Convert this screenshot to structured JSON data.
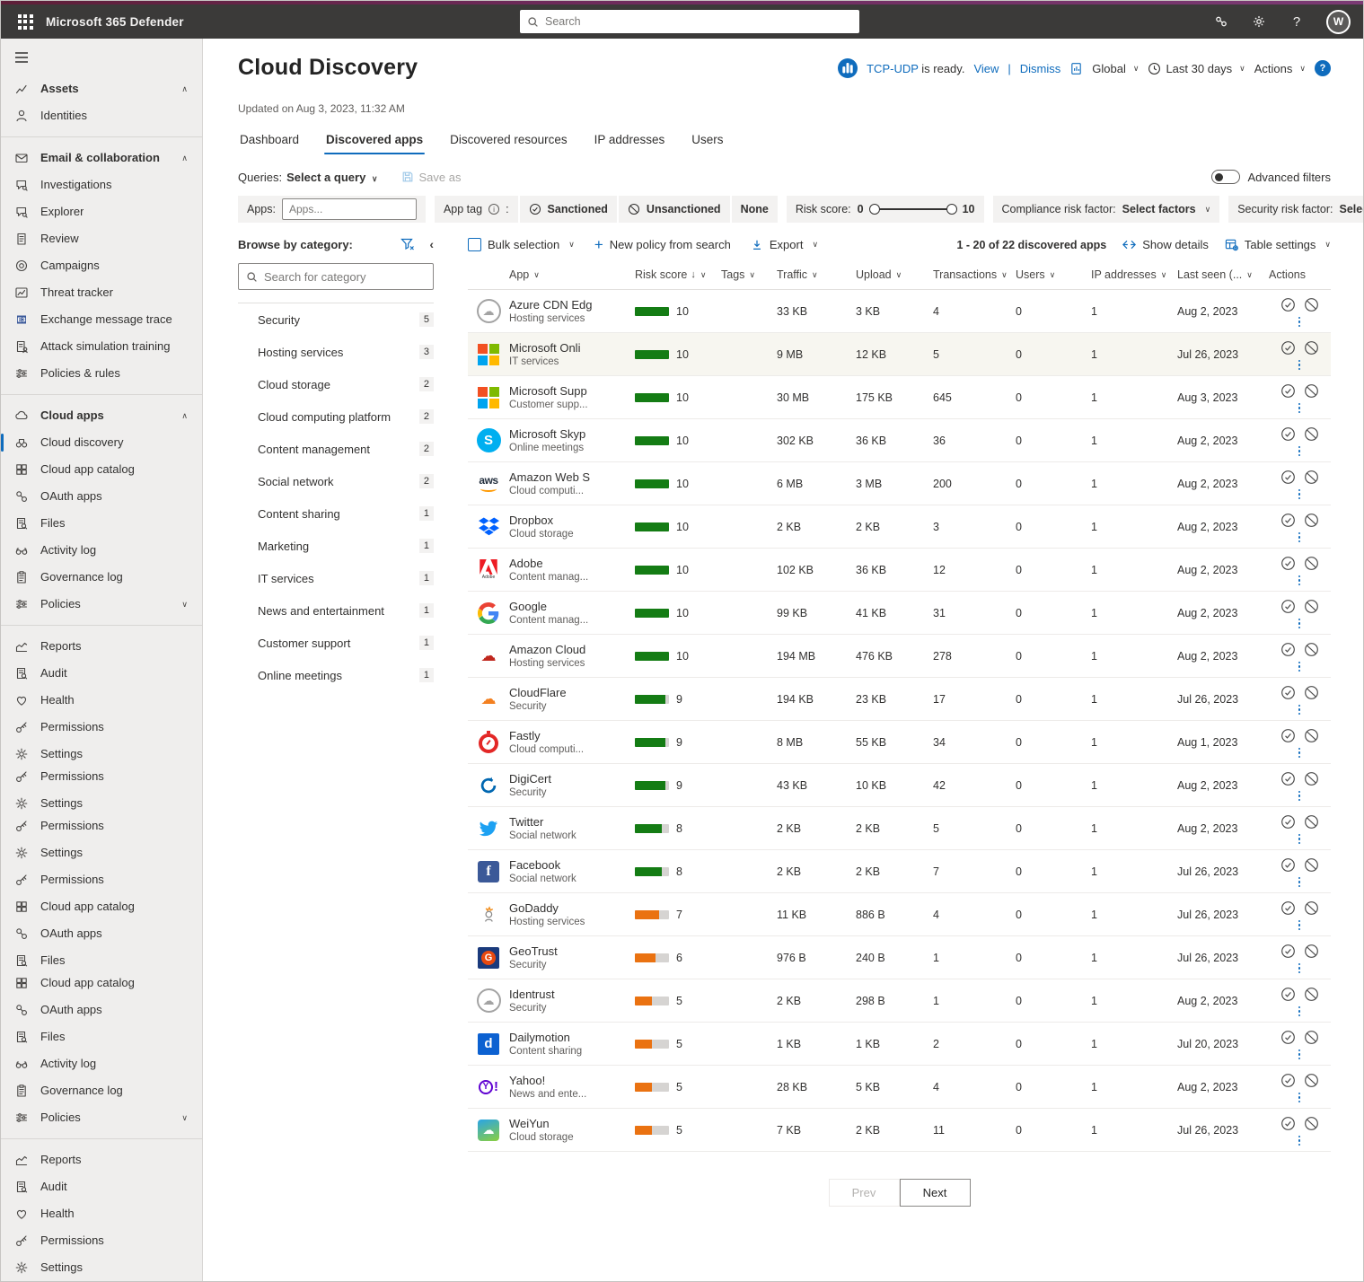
{
  "topbar": {
    "title": "Microsoft 365 Defender",
    "search_placeholder": "Search",
    "avatar_initial": "W"
  },
  "sidebar": {
    "items": [
      {
        "t": "head",
        "label": "Assets",
        "icon": "assets",
        "chev": "up"
      },
      {
        "t": "item",
        "label": "Identities",
        "icon": "person"
      },
      {
        "t": "div"
      },
      {
        "t": "head",
        "label": "Email & collaboration",
        "icon": "mail",
        "chev": "up"
      },
      {
        "t": "item",
        "label": "Investigations",
        "icon": "chat"
      },
      {
        "t": "item",
        "label": "Explorer",
        "icon": "chat"
      },
      {
        "t": "item",
        "label": "Review",
        "icon": "doc"
      },
      {
        "t": "item",
        "label": "Campaigns",
        "icon": "target"
      },
      {
        "t": "item",
        "label": "Threat tracker",
        "icon": "chartline"
      },
      {
        "t": "item",
        "label": "Exchange message trace",
        "icon": "exchange"
      },
      {
        "t": "item",
        "label": "Attack simulation training",
        "icon": "docperson"
      },
      {
        "t": "item",
        "label": "Policies & rules",
        "icon": "sliders"
      },
      {
        "t": "div"
      },
      {
        "t": "head",
        "label": "Cloud apps",
        "icon": "cloud",
        "chev": "up"
      },
      {
        "t": "item",
        "label": "Cloud discovery",
        "icon": "binoculars",
        "sel": true
      },
      {
        "t": "item",
        "label": "Cloud app catalog",
        "icon": "grid"
      },
      {
        "t": "item",
        "label": "OAuth apps",
        "icon": "oauth"
      },
      {
        "t": "item",
        "label": "Files",
        "icon": "filesearch"
      },
      {
        "t": "item",
        "label": "Activity log",
        "icon": "glasses"
      },
      {
        "t": "item",
        "label": "Governance log",
        "icon": "clipboard"
      },
      {
        "t": "item",
        "label": "Policies",
        "icon": "sliders",
        "chev": "down"
      },
      {
        "t": "div"
      },
      {
        "t": "item",
        "label": "Reports",
        "icon": "report"
      },
      {
        "t": "item",
        "label": "Audit",
        "icon": "filesearch"
      },
      {
        "t": "item",
        "label": "Health",
        "icon": "heart"
      },
      {
        "t": "item",
        "label": "Permissions",
        "icon": "key"
      },
      {
        "t": "item",
        "label": "Settings",
        "icon": "gear"
      },
      {
        "t": "item",
        "label": "Permissions",
        "icon": "key",
        "tight": true
      },
      {
        "t": "item",
        "label": "Settings",
        "icon": "gear"
      },
      {
        "t": "item",
        "label": "Permissions",
        "icon": "key",
        "tight": true
      },
      {
        "t": "item",
        "label": "Settings",
        "icon": "gear"
      },
      {
        "t": "item",
        "label": "Permissions",
        "icon": "key"
      },
      {
        "t": "item",
        "label": "Cloud app catalog",
        "icon": "grid"
      },
      {
        "t": "item",
        "label": "OAuth apps",
        "icon": "oauth"
      },
      {
        "t": "item",
        "label": "Files",
        "icon": "filesearch"
      },
      {
        "t": "item",
        "label": "Cloud app catalog",
        "icon": "grid",
        "tight": true
      },
      {
        "t": "item",
        "label": "OAuth apps",
        "icon": "oauth"
      },
      {
        "t": "item",
        "label": "Files",
        "icon": "filesearch"
      },
      {
        "t": "item",
        "label": "Activity log",
        "icon": "glasses"
      },
      {
        "t": "item",
        "label": "Governance log",
        "icon": "clipboard"
      },
      {
        "t": "item",
        "label": "Policies",
        "icon": "sliders",
        "chev": "down"
      },
      {
        "t": "div"
      },
      {
        "t": "item",
        "label": "Reports",
        "icon": "report"
      },
      {
        "t": "item",
        "label": "Audit",
        "icon": "filesearch"
      },
      {
        "t": "item",
        "label": "Health",
        "icon": "heart"
      },
      {
        "t": "item",
        "label": "Permissions",
        "icon": "key"
      },
      {
        "t": "item",
        "label": "Settings",
        "icon": "gear"
      }
    ]
  },
  "page": {
    "title": "Cloud Discovery",
    "updated": "Updated on Aug 3, 2023, 11:32 AM",
    "banner": {
      "app_name": "TCP-UDP",
      "message": " is ready.",
      "view": "View",
      "separator": "|",
      "dismiss": "Dismiss",
      "scope": "Global",
      "period": "Last 30 days",
      "actions": "Actions"
    },
    "tabs": [
      {
        "label": "Dashboard",
        "active": false
      },
      {
        "label": "Discovered apps",
        "active": true
      },
      {
        "label": "Discovered resources",
        "active": false
      },
      {
        "label": "IP addresses",
        "active": false
      },
      {
        "label": "Users",
        "active": false
      }
    ]
  },
  "filters": {
    "queries_label": "Queries:",
    "queries_value": "Select a query",
    "save_as": "Save as",
    "advanced_filters": "Advanced filters",
    "apps_label": "Apps:",
    "apps_placeholder": "Apps...",
    "app_tag_label": "App tag",
    "sanctioned": "Sanctioned",
    "unsanctioned": "Unsanctioned",
    "none": "None",
    "risk_label": "Risk score:",
    "risk_min": "0",
    "risk_max": "10",
    "compliance_label": "Compliance risk factor:",
    "compliance_value": "Select factors",
    "security_label": "Security risk factor:",
    "security_value": "Select factors"
  },
  "categories": {
    "heading": "Browse by category:",
    "search_placeholder": "Search for category",
    "items": [
      {
        "label": "Security",
        "count": "5"
      },
      {
        "label": "Hosting services",
        "count": "3"
      },
      {
        "label": "Cloud storage",
        "count": "2"
      },
      {
        "label": "Cloud computing platform",
        "count": "2"
      },
      {
        "label": "Content management",
        "count": "2"
      },
      {
        "label": "Social network",
        "count": "2"
      },
      {
        "label": "Content sharing",
        "count": "1"
      },
      {
        "label": "Marketing",
        "count": "1"
      },
      {
        "label": "IT services",
        "count": "1"
      },
      {
        "label": "News and entertainment",
        "count": "1"
      },
      {
        "label": "Customer support",
        "count": "1"
      },
      {
        "label": "Online meetings",
        "count": "1"
      }
    ]
  },
  "toolbar": {
    "bulk_selection": "Bulk selection",
    "new_policy": "New policy from search",
    "export": "Export",
    "count_text": "1 - 20 of 22 discovered apps",
    "show_details": "Show details",
    "table_settings": "Table settings"
  },
  "table": {
    "columns": [
      {
        "label": "App",
        "chev": true
      },
      {
        "label": "Risk score",
        "sort": "↓",
        "chev": true
      },
      {
        "label": "Tags",
        "chev": true
      },
      {
        "label": "Traffic",
        "chev": true
      },
      {
        "label": "Upload",
        "chev": true
      },
      {
        "label": "Transactions",
        "chev": true
      },
      {
        "label": "Users",
        "chev": true
      },
      {
        "label": "IP addresses",
        "chev": true
      },
      {
        "label": "Last seen (...",
        "chev": true
      },
      {
        "label": "Actions",
        "chev": false
      }
    ],
    "rows": [
      {
        "icon": "azurecdn",
        "name": "Azure CDN Edg",
        "category": "Hosting services",
        "score": 10,
        "traffic": "33 KB",
        "upload": "3 KB",
        "transactions": "4",
        "users": "0",
        "ips": "1",
        "last_seen": "Aug 2, 2023"
      },
      {
        "icon": "microsoft",
        "name": "Microsoft Onli",
        "category": "IT services",
        "score": 10,
        "traffic": "9 MB",
        "upload": "12 KB",
        "transactions": "5",
        "users": "0",
        "ips": "1",
        "last_seen": "Jul 26, 2023",
        "highlight": true
      },
      {
        "icon": "microsoft",
        "name": "Microsoft Supp",
        "category": "Customer supp...",
        "score": 10,
        "traffic": "30 MB",
        "upload": "175 KB",
        "transactions": "645",
        "users": "0",
        "ips": "1",
        "last_seen": "Aug 3, 2023"
      },
      {
        "icon": "skype",
        "name": "Microsoft Skyp",
        "category": "Online meetings",
        "score": 10,
        "traffic": "302 KB",
        "upload": "36 KB",
        "transactions": "36",
        "users": "0",
        "ips": "1",
        "last_seen": "Aug 2, 2023"
      },
      {
        "icon": "aws",
        "name": "Amazon Web S",
        "category": "Cloud computi...",
        "score": 10,
        "traffic": "6 MB",
        "upload": "3 MB",
        "transactions": "200",
        "users": "0",
        "ips": "1",
        "last_seen": "Aug 2, 2023"
      },
      {
        "icon": "dropbox",
        "name": "Dropbox",
        "category": "Cloud storage",
        "score": 10,
        "traffic": "2 KB",
        "upload": "2 KB",
        "transactions": "3",
        "users": "0",
        "ips": "1",
        "last_seen": "Aug 2, 2023"
      },
      {
        "icon": "adobe",
        "name": "Adobe",
        "category": "Content manag...",
        "score": 10,
        "traffic": "102 KB",
        "upload": "36 KB",
        "transactions": "12",
        "users": "0",
        "ips": "1",
        "last_seen": "Aug 2, 2023"
      },
      {
        "icon": "google",
        "name": "Google",
        "category": "Content manag...",
        "score": 10,
        "traffic": "99 KB",
        "upload": "41 KB",
        "transactions": "31",
        "users": "0",
        "ips": "1",
        "last_seen": "Aug 2, 2023"
      },
      {
        "icon": "amazoncloud",
        "name": "Amazon Cloud",
        "category": "Hosting services",
        "score": 10,
        "traffic": "194 MB",
        "upload": "476 KB",
        "transactions": "278",
        "users": "0",
        "ips": "1",
        "last_seen": "Aug 2, 2023"
      },
      {
        "icon": "cloudflare",
        "name": "CloudFlare",
        "category": "Security",
        "score": 9,
        "traffic": "194 KB",
        "upload": "23 KB",
        "transactions": "17",
        "users": "0",
        "ips": "1",
        "last_seen": "Jul 26, 2023"
      },
      {
        "icon": "fastly",
        "name": "Fastly",
        "category": "Cloud computi...",
        "score": 9,
        "traffic": "8 MB",
        "upload": "55 KB",
        "transactions": "34",
        "users": "0",
        "ips": "1",
        "last_seen": "Aug 1, 2023"
      },
      {
        "icon": "digicert",
        "name": "DigiCert",
        "category": "Security",
        "score": 9,
        "traffic": "43 KB",
        "upload": "10 KB",
        "transactions": "42",
        "users": "0",
        "ips": "1",
        "last_seen": "Aug 2, 2023"
      },
      {
        "icon": "twitter",
        "name": "Twitter",
        "category": "Social network",
        "score": 8,
        "traffic": "2 KB",
        "upload": "2 KB",
        "transactions": "5",
        "users": "0",
        "ips": "1",
        "last_seen": "Aug 2, 2023"
      },
      {
        "icon": "facebook",
        "name": "Facebook",
        "category": "Social network",
        "score": 8,
        "traffic": "2 KB",
        "upload": "2 KB",
        "transactions": "7",
        "users": "0",
        "ips": "1",
        "last_seen": "Jul 26, 2023"
      },
      {
        "icon": "godaddy",
        "name": "GoDaddy",
        "category": "Hosting services",
        "score": 7,
        "traffic": "11 KB",
        "upload": "886 B",
        "transactions": "4",
        "users": "0",
        "ips": "1",
        "last_seen": "Jul 26, 2023"
      },
      {
        "icon": "geotrust",
        "name": "GeoTrust",
        "category": "Security",
        "score": 6,
        "traffic": "976 B",
        "upload": "240 B",
        "transactions": "1",
        "users": "0",
        "ips": "1",
        "last_seen": "Jul 26, 2023"
      },
      {
        "icon": "identrust",
        "name": "Identrust",
        "category": "Security",
        "score": 5,
        "traffic": "2 KB",
        "upload": "298 B",
        "transactions": "1",
        "users": "0",
        "ips": "1",
        "last_seen": "Aug 2, 2023"
      },
      {
        "icon": "dailymotion",
        "name": "Dailymotion",
        "category": "Content sharing",
        "score": 5,
        "traffic": "1 KB",
        "upload": "1 KB",
        "transactions": "2",
        "users": "0",
        "ips": "1",
        "last_seen": "Jul 20, 2023"
      },
      {
        "icon": "yahoo",
        "name": "Yahoo!",
        "category": "News and ente...",
        "score": 5,
        "traffic": "28 KB",
        "upload": "5 KB",
        "transactions": "4",
        "users": "0",
        "ips": "1",
        "last_seen": "Aug 2, 2023"
      },
      {
        "icon": "weiyun",
        "name": "WeiYun",
        "category": "Cloud storage",
        "score": 5,
        "traffic": "7 KB",
        "upload": "2 KB",
        "transactions": "11",
        "users": "0",
        "ips": "1",
        "last_seen": "Jul 26, 2023"
      }
    ]
  },
  "pagination": {
    "prev": "Prev",
    "next": "Next"
  },
  "colors": {
    "accent": "#0f6cbd",
    "risk_green": "#147c14",
    "risk_orange": "#ea7211",
    "row_highlight": "#f7f6f0",
    "topbar": "#3b3a39"
  }
}
